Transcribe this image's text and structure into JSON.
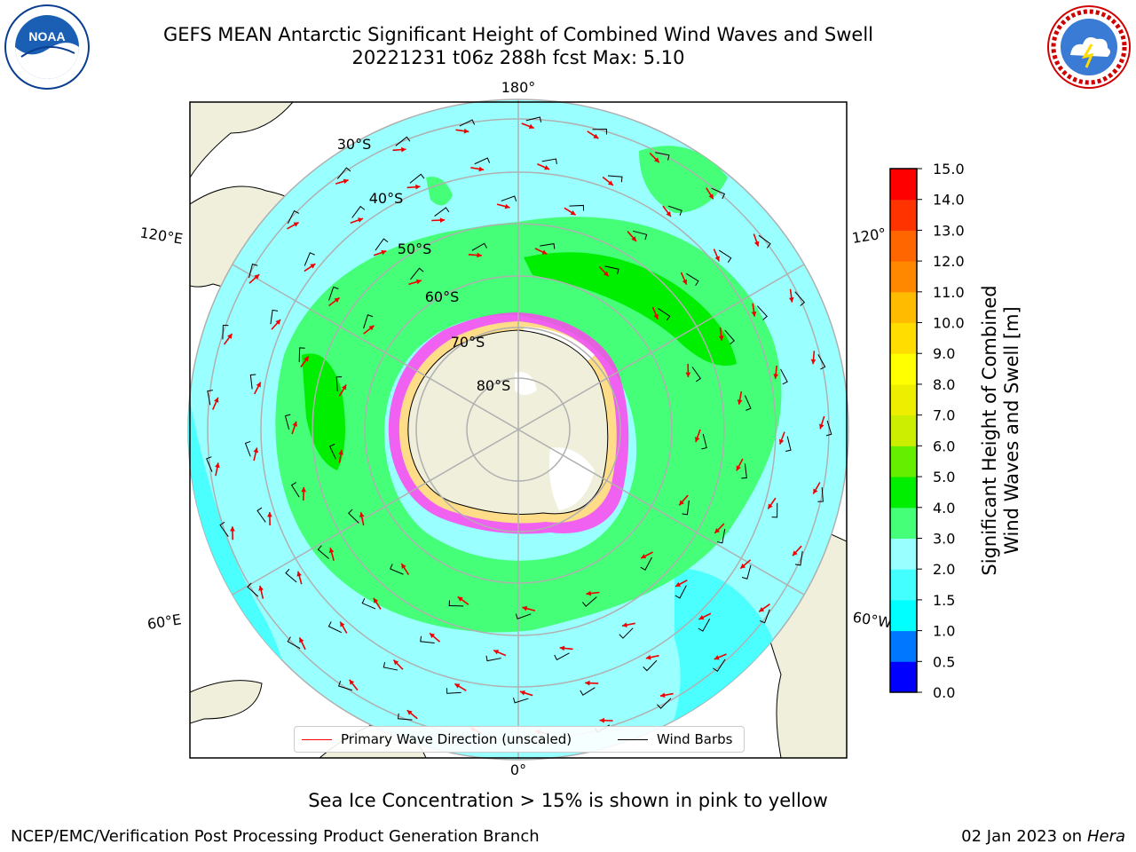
{
  "title": {
    "line1": "GEFS MEAN Antarctic Significant Height of Combined Wind Waves and Swell",
    "line2": "20221231 t06z 288h fcst   Max: 5.10"
  },
  "logos": {
    "left": "noaa-logo",
    "left_text": "NOAA",
    "right": "nws-logo"
  },
  "map": {
    "longitude_labels": [
      "180°",
      "120°E",
      "120°",
      "60°E",
      "60°W",
      "0°"
    ],
    "latitude_labels": [
      "30°S",
      "40°S",
      "50°S",
      "60°S",
      "70°S",
      "80°S"
    ]
  },
  "legend": {
    "wave_label": "Primary Wave Direction (unscaled)",
    "wave_color": "#ff0000",
    "barb_label": "Wind Barbs",
    "barb_color": "#000000"
  },
  "colorbar": {
    "ticks": [
      "0.0",
      "0.5",
      "1.0",
      "1.5",
      "2.0",
      "3.0",
      "4.0",
      "5.0",
      "6.0",
      "7.0",
      "8.0",
      "9.0",
      "10.0",
      "11.0",
      "12.0",
      "13.0",
      "14.0",
      "15.0"
    ],
    "colors": [
      "#0000ff",
      "#0077ff",
      "#00ffff",
      "#44ffff",
      "#99ffff",
      "#44ff77",
      "#00ee00",
      "#66ee00",
      "#ccee00",
      "#eeee00",
      "#ffff00",
      "#ffdd00",
      "#ffbb00",
      "#ff8800",
      "#ff6600",
      "#ff3300",
      "#ff0000"
    ],
    "label_line1": "Significant Height of Combined",
    "label_line2": "Wind Waves and Swell [m]"
  },
  "caption": "Sea Ice Concentration > 15% is shown in pink to yellow",
  "footer": {
    "left": "NCEP/EMC/Verification Post Processing Product Generation Branch",
    "right_prefix": "02 Jan 2023 on ",
    "right_host": "Hera"
  }
}
